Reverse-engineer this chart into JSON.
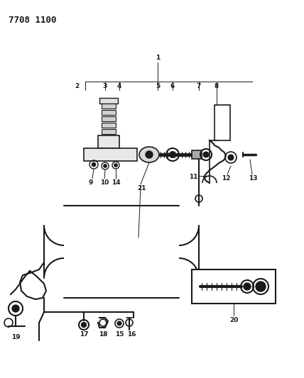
{
  "title": "7708 1100",
  "bg_color": "#ffffff",
  "line_color": "#1a1a1a",
  "fig_width": 4.28,
  "fig_height": 5.33,
  "dpi": 100
}
